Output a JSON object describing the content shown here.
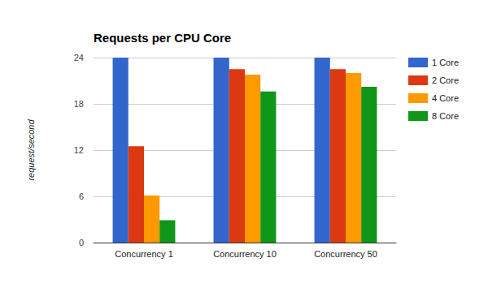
{
  "chart_data": {
    "type": "bar",
    "title": "Requests per CPU Core",
    "ylabel": "request/second",
    "categories": [
      "Concurrency 1",
      "Concurrency 10",
      "Concurrency 50"
    ],
    "series": [
      {
        "name": "1 Core",
        "color": "#3366cc",
        "values": [
          24,
          24,
          24
        ]
      },
      {
        "name": "2 Core",
        "color": "#dc3912",
        "values": [
          12.5,
          22.5,
          22.5
        ]
      },
      {
        "name": "4 Core",
        "color": "#ff9900",
        "values": [
          6.1,
          21.8,
          22
        ]
      },
      {
        "name": "8 Core",
        "color": "#109618",
        "values": [
          2.9,
          19.6,
          20.2
        ]
      }
    ],
    "ylim": [
      0,
      24
    ],
    "yticks": [
      0,
      6,
      12,
      18,
      24
    ],
    "grid": true,
    "legend": "right"
  }
}
